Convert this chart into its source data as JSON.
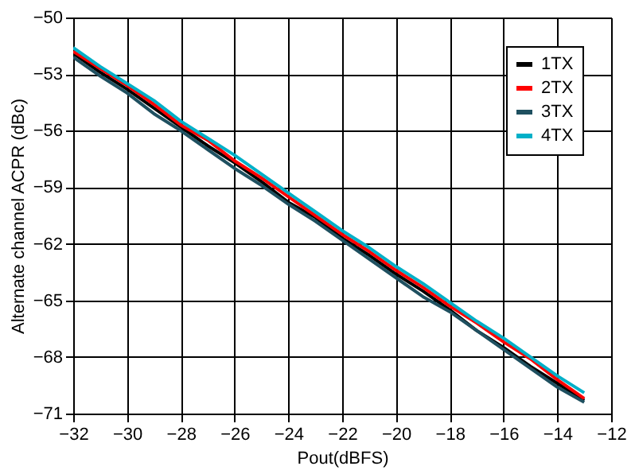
{
  "chart_data": {
    "type": "line",
    "xlabel": "Pout(dBFS)",
    "ylabel": "Alternate channel ACPR (dBc)",
    "x": [
      -32,
      -31,
      -30,
      -29,
      -28,
      -27,
      -26,
      -25,
      -24,
      -23,
      -22,
      -21,
      -20,
      -19,
      -18,
      -17,
      -16,
      -15,
      -14,
      -13
    ],
    "series": [
      {
        "name": "1TX",
        "color": "#000000",
        "values": [
          -51.9,
          -52.9,
          -53.8,
          -54.8,
          -55.8,
          -56.8,
          -57.7,
          -58.7,
          -59.8,
          -60.6,
          -61.7,
          -62.6,
          -63.6,
          -64.5,
          -65.5,
          -66.6,
          -67.5,
          -68.5,
          -69.4,
          -70.3
        ]
      },
      {
        "name": "2TX",
        "color": "#ff0000",
        "values": [
          -51.8,
          -52.7,
          -53.6,
          -54.6,
          -55.7,
          -56.5,
          -57.6,
          -58.5,
          -59.5,
          -60.5,
          -61.5,
          -62.4,
          -63.4,
          -64.3,
          -65.3,
          -66.2,
          -67.2,
          -68.1,
          -69.2,
          -70.2
        ]
      },
      {
        "name": "3TX",
        "color": "#1f5060",
        "values": [
          -52.1,
          -53.1,
          -54.0,
          -55.1,
          -56.0,
          -57.0,
          -58.0,
          -58.9,
          -59.9,
          -60.8,
          -61.8,
          -62.8,
          -63.8,
          -64.8,
          -65.6,
          -66.6,
          -67.6,
          -68.6,
          -69.6,
          -70.4
        ]
      },
      {
        "name": "4TX",
        "color": "#00b0c8",
        "values": [
          -51.6,
          -52.6,
          -53.5,
          -54.4,
          -55.5,
          -56.4,
          -57.3,
          -58.3,
          -59.3,
          -60.3,
          -61.3,
          -62.2,
          -63.2,
          -64.1,
          -65.1,
          -66.1,
          -67.0,
          -68.0,
          -69.0,
          -69.9
        ]
      }
    ],
    "xlim": [
      -32,
      -12
    ],
    "xticks": [
      -32,
      -30,
      -28,
      -26,
      -24,
      -22,
      -20,
      -18,
      -16,
      -14,
      -12
    ],
    "ylim": [
      -71,
      -50
    ],
    "yticks": [
      -71,
      -68,
      -65,
      -62,
      -59,
      -56,
      -53,
      -50
    ],
    "grid": true,
    "legend": "top right"
  }
}
